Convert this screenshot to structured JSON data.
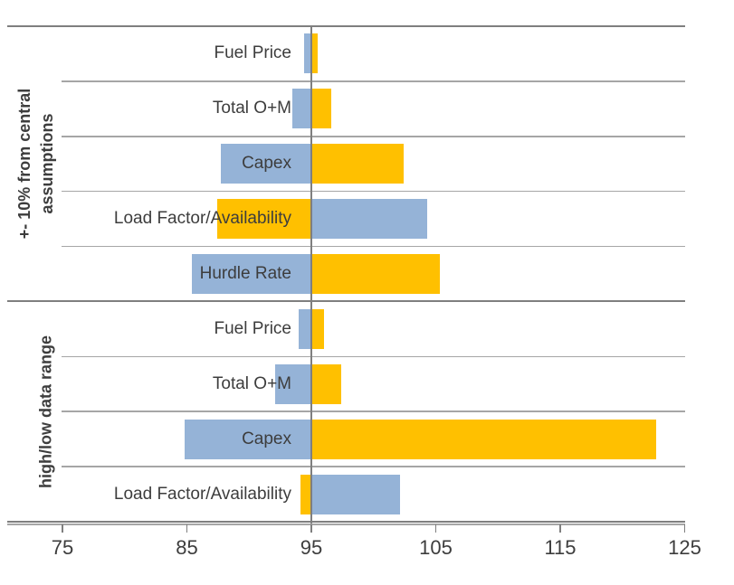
{
  "chart_data": {
    "type": "bar",
    "variant": "tornado",
    "title": "",
    "xlabel": "",
    "ylabel": "",
    "baseline": 95,
    "xlim": [
      75,
      125
    ],
    "x_ticks": [
      75,
      85,
      95,
      105,
      115,
      125
    ],
    "grid": true,
    "legend": "none",
    "colors": {
      "blue": "#95B3D7",
      "yellow": "#FFC000",
      "row_gridline": "#a6a6a6",
      "group_line": "#7f7f7f",
      "center_line": "#7f7f7f",
      "axis_line": "#a6a6a6",
      "text": "#3d3d3d"
    },
    "groups": [
      {
        "label": "+- 10% from central assumptions",
        "label_lines": [
          "+- 10% from central",
          "assumptions"
        ],
        "rows": [
          {
            "category": "Fuel Price",
            "bars": [
              {
                "color": "blue",
                "from": 94.4,
                "to": 95
              },
              {
                "color": "yellow",
                "from": 95,
                "to": 95.5
              }
            ]
          },
          {
            "category": "Total O+M",
            "bars": [
              {
                "color": "blue",
                "from": 93.5,
                "to": 95
              },
              {
                "color": "yellow",
                "from": 95,
                "to": 96.6
              }
            ]
          },
          {
            "category": "Capex",
            "bars": [
              {
                "color": "blue",
                "from": 87.7,
                "to": 95
              },
              {
                "color": "yellow",
                "from": 95,
                "to": 102.4
              }
            ]
          },
          {
            "category": "Load Factor/Availability",
            "bars": [
              {
                "color": "yellow",
                "from": 87.4,
                "to": 95
              },
              {
                "color": "blue",
                "from": 95,
                "to": 104.3
              }
            ]
          },
          {
            "category": "Hurdle Rate",
            "bars": [
              {
                "color": "blue",
                "from": 85.4,
                "to": 95
              },
              {
                "color": "yellow",
                "from": 95,
                "to": 105.3
              }
            ]
          }
        ]
      },
      {
        "label": "high/low data range",
        "label_lines": [
          "high/low data range"
        ],
        "rows": [
          {
            "category": "Fuel Price",
            "bars": [
              {
                "color": "blue",
                "from": 94.0,
                "to": 95
              },
              {
                "color": "yellow",
                "from": 95,
                "to": 96.0
              }
            ]
          },
          {
            "category": "Total O+M",
            "bars": [
              {
                "color": "blue",
                "from": 92.1,
                "to": 95
              },
              {
                "color": "yellow",
                "from": 95,
                "to": 97.4
              }
            ]
          },
          {
            "category": "Capex",
            "bars": [
              {
                "color": "blue",
                "from": 84.8,
                "to": 95
              },
              {
                "color": "yellow",
                "from": 95,
                "to": 122.7
              }
            ]
          },
          {
            "category": "Load Factor/Availability",
            "bars": [
              {
                "color": "yellow",
                "from": 94.1,
                "to": 95
              },
              {
                "color": "blue",
                "from": 95,
                "to": 102.1
              }
            ]
          }
        ]
      }
    ]
  }
}
